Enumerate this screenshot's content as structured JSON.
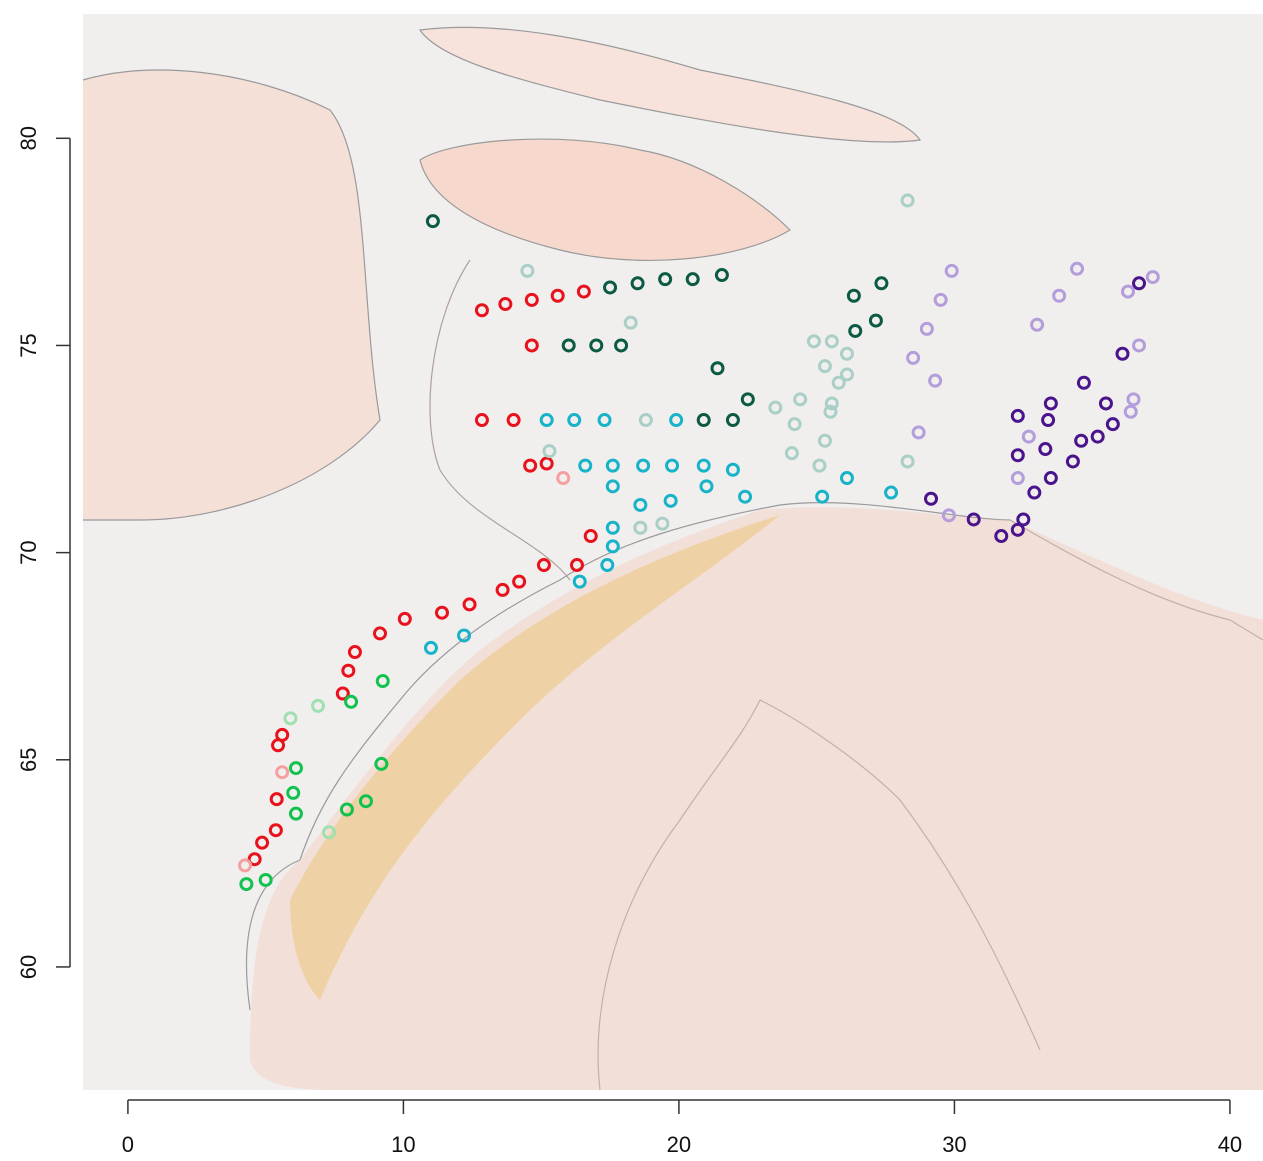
{
  "chart_data": {
    "type": "scatter",
    "xlim": [
      -1.63,
      41.2
    ],
    "ylim": [
      57.03,
      83.0
    ],
    "xticks": [
      0,
      10,
      20,
      30,
      40
    ],
    "yticks": [
      60,
      65,
      70,
      75,
      80
    ],
    "series": [
      {
        "color": "#e8121c",
        "x": [
          12.85,
          13.7,
          14.66,
          15.6,
          16.55,
          14.66,
          12.85,
          14.0,
          14.6,
          15.2,
          16.3,
          16.8,
          15.1,
          14.2,
          13.6,
          12.4,
          11.4,
          10.05,
          9.15,
          8.24,
          8.0,
          7.8,
          5.6,
          5.45,
          5.4,
          5.37,
          4.87,
          4.6
        ],
        "values": [
          75.85,
          76.0,
          76.1,
          76.2,
          76.3,
          75.0,
          73.2,
          73.2,
          72.1,
          72.15,
          69.7,
          70.4,
          69.7,
          69.3,
          69.1,
          68.75,
          68.55,
          68.4,
          68.05,
          67.6,
          67.15,
          66.6,
          65.6,
          65.35,
          64.05,
          63.3,
          63.0,
          62.6
        ]
      },
      {
        "color": "#17b3c9",
        "x": [
          15.2,
          16.2,
          17.3,
          19.9,
          16.6,
          17.6,
          18.7,
          19.75,
          20.9,
          21.96,
          17.6,
          18.6,
          19.7,
          21.0,
          22.4,
          17.6,
          17.6,
          17.4,
          16.4,
          12.2,
          11.0,
          25.2,
          26.1,
          27.7
        ],
        "values": [
          73.2,
          73.2,
          73.2,
          73.2,
          72.1,
          72.1,
          72.1,
          72.1,
          72.1,
          72.0,
          71.6,
          71.15,
          71.25,
          71.6,
          71.35,
          70.6,
          70.15,
          69.7,
          69.3,
          68.0,
          67.7,
          71.35,
          71.8,
          71.45
        ]
      },
      {
        "color": "#0b5a44",
        "x": [
          11.07,
          17.5,
          18.5,
          19.5,
          20.5,
          21.56,
          16.0,
          17.0,
          17.9,
          21.4,
          22.5,
          20.9,
          21.96,
          26.35,
          27.35,
          27.15,
          26.4
        ],
        "values": [
          78.0,
          76.4,
          76.5,
          76.6,
          76.6,
          76.7,
          75.0,
          75.0,
          75.0,
          74.45,
          73.7,
          73.2,
          73.2,
          76.2,
          76.5,
          75.6,
          75.35
        ]
      },
      {
        "color": "#4a148c",
        "x": [
          36.7,
          36.1,
          34.7,
          33.5,
          32.3,
          33.4,
          35.5,
          35.75,
          35.2,
          34.6,
          33.3,
          32.3,
          34.3,
          33.5,
          32.9,
          29.15,
          30.7,
          32.5,
          32.3,
          31.7
        ],
        "values": [
          76.5,
          74.8,
          74.1,
          73.6,
          73.3,
          73.2,
          73.6,
          73.1,
          72.8,
          72.7,
          72.5,
          72.35,
          72.2,
          71.8,
          71.45,
          71.3,
          70.8,
          70.8,
          70.55,
          70.4
        ]
      },
      {
        "color": "#b39ddb",
        "x": [
          29.9,
          34.45,
          37.2,
          36.3,
          33.8,
          29.5,
          29.0,
          33.0,
          36.7,
          28.5,
          29.3,
          36.5,
          28.7,
          36.4,
          32.7,
          29.8,
          32.3
        ],
        "values": [
          76.8,
          76.85,
          76.65,
          76.3,
          76.2,
          76.1,
          75.4,
          75.5,
          75.0,
          74.7,
          74.15,
          73.7,
          72.9,
          73.4,
          72.8,
          70.9,
          71.8
        ]
      },
      {
        "color": "#a9cfc6",
        "x": [
          28.3,
          14.5,
          18.25,
          24.9,
          25.55,
          26.1,
          25.3,
          26.1,
          25.8,
          24.4,
          23.5,
          25.55,
          25.5,
          24.2,
          25.3,
          24.1,
          25.1,
          28.3,
          18.8,
          15.3,
          18.6,
          19.4
        ],
        "values": [
          78.5,
          76.8,
          75.55,
          75.1,
          75.1,
          74.8,
          74.5,
          74.3,
          74.1,
          73.7,
          73.5,
          73.6,
          73.4,
          73.1,
          72.7,
          72.4,
          72.1,
          72.2,
          73.2,
          72.45,
          70.6,
          70.7
        ]
      },
      {
        "color": "#12c24e",
        "x": [
          4.3,
          5.0,
          6.1,
          6.0,
          6.1,
          8.1,
          7.95,
          8.64,
          9.25,
          9.2
        ],
        "values": [
          62.0,
          62.1,
          64.8,
          64.2,
          63.7,
          66.4,
          63.8,
          64.0,
          66.9,
          64.9
        ]
      },
      {
        "color": "#9fe0b0",
        "x": [
          6.9,
          5.9,
          7.3
        ],
        "values": [
          66.3,
          66.0,
          63.25
        ]
      },
      {
        "color": "#f4a0a0",
        "x": [
          5.6,
          15.8,
          4.25
        ],
        "values": [
          64.7,
          71.8,
          62.45
        ]
      }
    ]
  }
}
